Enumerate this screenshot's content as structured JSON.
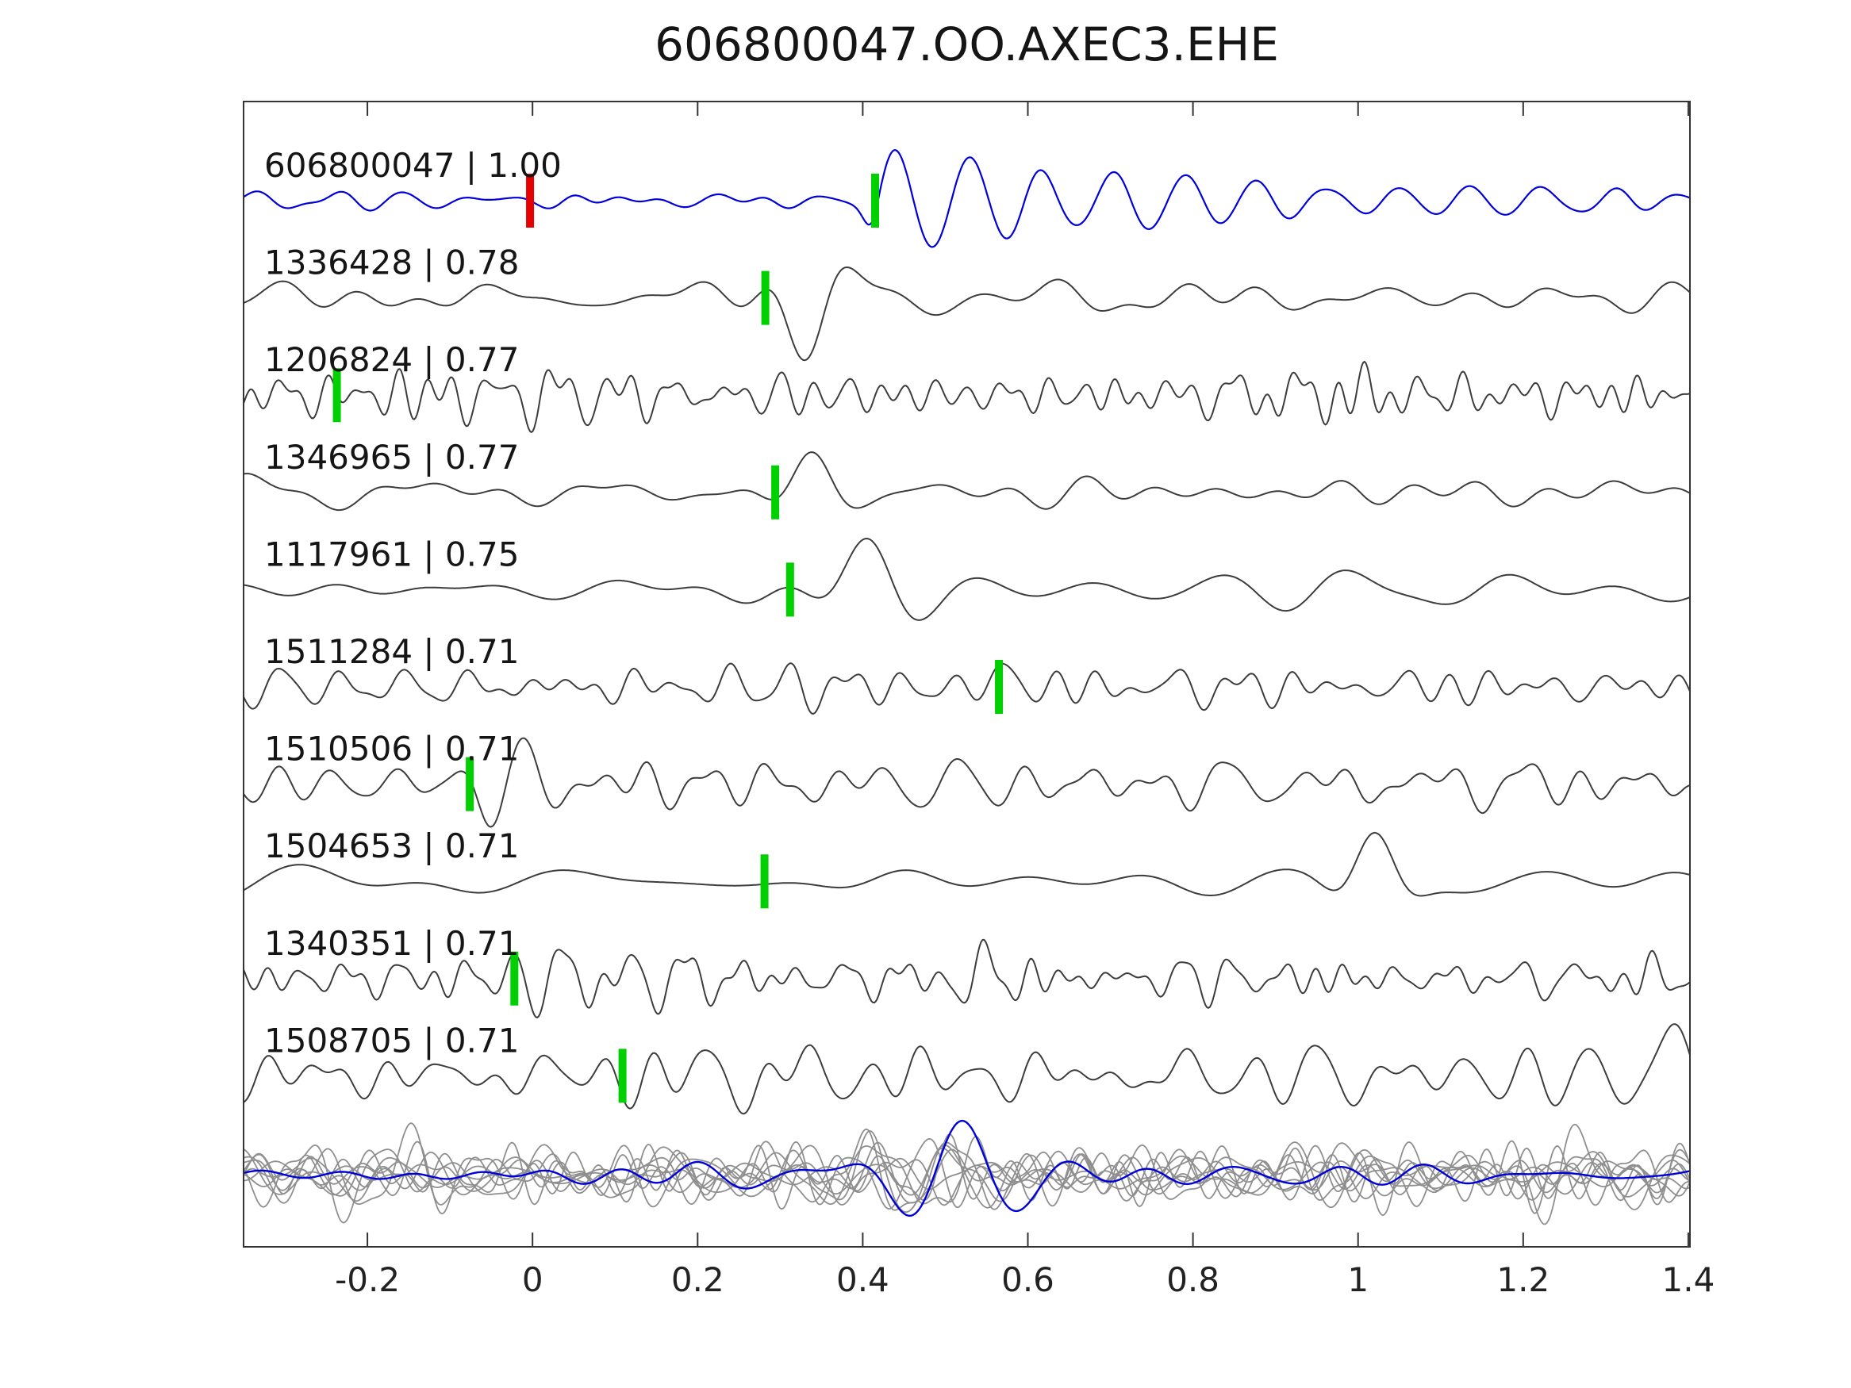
{
  "chart_data": {
    "type": "line",
    "title": "606800047.OO.AXEC3.EHE",
    "xlabel": "",
    "ylabel": "",
    "x_range": [
      -0.35,
      1.402
    ],
    "x_ticks": [
      -0.2,
      0,
      0.2,
      0.4,
      0.6,
      0.8,
      1,
      1.2,
      1.4
    ],
    "x_tick_labels": [
      "-0.2",
      "0",
      "0.2",
      "0.4",
      "0.6",
      "0.8",
      "1",
      "1.2",
      "1.4"
    ],
    "grid": false,
    "legend": "none",
    "colors": {
      "template_trace": "#0000dd",
      "match_trace": "#3c3c3c",
      "pick_green": "#00cf00",
      "pick_red": "#e60000",
      "overlay_gray": "#8f8f8f",
      "axis": "#333333",
      "text": "#151515"
    },
    "traces": [
      {
        "id": "606800047",
        "cc": "1.00",
        "label": "606800047 | 1.00",
        "role": "template",
        "seed": 11,
        "noise": {
          "amp": 5,
          "fmin": 6,
          "fmax": 22
        },
        "events": [
          {
            "t0": 0.42,
            "amp": 64,
            "freq": 11.5,
            "rise": 0.018,
            "decay": 0.45,
            "phase": 0
          }
        ],
        "picks": [
          {
            "t": -0.003,
            "color": "#e60000"
          },
          {
            "t": 0.415,
            "color": "#00cf00"
          }
        ]
      },
      {
        "id": "1336428",
        "cc": "0.78",
        "label": "1336428 | 0.78",
        "role": "match",
        "seed": 22,
        "noise": {
          "amp": 10,
          "fmin": 4,
          "fmax": 16
        },
        "events": [
          {
            "t0": 0.33,
            "amp": -62,
            "freq": 8,
            "sigma": 0.05,
            "phase": 1.5708
          }
        ],
        "picks": [
          {
            "t": 0.282,
            "color": "#00cf00"
          }
        ]
      },
      {
        "id": "1206824",
        "cc": "0.77",
        "label": "1206824 | 0.77",
        "role": "match",
        "seed": 33,
        "noise": {
          "amp": 15,
          "fmin": 11,
          "fmax": 38
        },
        "events": [],
        "picks": [
          {
            "t": -0.237,
            "color": "#00cf00"
          }
        ]
      },
      {
        "id": "1346965",
        "cc": "0.77",
        "label": "1346965 | 0.77",
        "role": "match",
        "seed": 44,
        "noise": {
          "amp": 10,
          "fmin": 3.5,
          "fmax": 13
        },
        "events": [
          {
            "t0": 0.335,
            "amp": 60,
            "freq": 7.5,
            "sigma": 0.055,
            "phase": 1.5708
          }
        ],
        "picks": [
          {
            "t": 0.294,
            "color": "#00cf00"
          }
        ]
      },
      {
        "id": "1117961",
        "cc": "0.75",
        "label": "1117961 | 0.75",
        "role": "match",
        "seed": 55,
        "noise": {
          "amp": 9,
          "fmin": 3.5,
          "fmax": 13
        },
        "events": [
          {
            "t0": 0.405,
            "amp": 62,
            "freq": 6.5,
            "sigma": 0.07,
            "phase": 1.5708
          }
        ],
        "picks": [
          {
            "t": 0.312,
            "color": "#00cf00"
          }
        ]
      },
      {
        "id": "1511284",
        "cc": "0.71",
        "label": "1511284 | 0.71",
        "role": "match",
        "seed": 66,
        "noise": {
          "amp": 12,
          "fmin": 7,
          "fmax": 26
        },
        "events": [
          {
            "t0": 0.575,
            "amp": 48,
            "freq": 13,
            "sigma": 0.035,
            "phase": 1.5708
          }
        ],
        "picks": [
          {
            "t": 0.565,
            "color": "#00cf00"
          }
        ]
      },
      {
        "id": "1510506",
        "cc": "0.71",
        "label": "1510506 | 0.71",
        "role": "match",
        "seed": 77,
        "noise": {
          "amp": 13,
          "fmin": 7,
          "fmax": 26
        },
        "events": [
          {
            "t0": -0.03,
            "amp": 42,
            "freq": 11,
            "sigma": 0.055,
            "phase": 0
          },
          {
            "t0": 0.82,
            "amp": 30,
            "freq": 10,
            "sigma": 0.08,
            "phase": 0
          }
        ],
        "picks": [
          {
            "t": -0.076,
            "color": "#00cf00"
          }
        ]
      },
      {
        "id": "1504653",
        "cc": "0.71",
        "label": "1504653 | 0.71",
        "role": "match",
        "seed": 88,
        "noise": {
          "amp": 8,
          "fmin": 2.2,
          "fmax": 8
        },
        "events": [
          {
            "t0": 1.02,
            "amp": 58,
            "freq": 7.5,
            "sigma": 0.05,
            "phase": 1.5708
          },
          {
            "t0": 0.42,
            "amp": 16,
            "freq": 5,
            "sigma": 0.1,
            "phase": 0
          }
        ],
        "picks": [
          {
            "t": 0.281,
            "color": "#00cf00"
          }
        ]
      },
      {
        "id": "1340351",
        "cc": "0.71",
        "label": "1340351 | 0.71",
        "role": "match",
        "seed": 99,
        "noise": {
          "amp": 14,
          "fmin": 11,
          "fmax": 36
        },
        "events": [
          {
            "t0": 0.02,
            "amp": 34,
            "freq": 16,
            "sigma": 0.05,
            "phase": 0
          },
          {
            "t0": 0.55,
            "amp": 38,
            "freq": 15,
            "sigma": 0.04,
            "phase": 1.0
          }
        ],
        "picks": [
          {
            "t": -0.022,
            "color": "#00cf00"
          }
        ]
      },
      {
        "id": "1508705",
        "cc": "0.71",
        "label": "1508705 | 0.71",
        "role": "match",
        "seed": 111,
        "noise": {
          "amp": 16,
          "fmin": 6,
          "fmax": 22
        },
        "events": [
          {
            "t0": 1.36,
            "amp": 46,
            "freq": 7,
            "sigma": 0.05,
            "phase": 1.2
          }
        ],
        "picks": [
          {
            "t": 0.109,
            "color": "#00cf00"
          }
        ]
      }
    ],
    "overlay": {
      "gray": {
        "count": 9,
        "seed": 500,
        "color": "#8f8f8f",
        "noise": {
          "amp": 14,
          "fmin": 6,
          "fmax": 24
        },
        "event": {
          "t0": 0.47,
          "amp": 26,
          "freq": 9,
          "sigma": 0.12,
          "phase": 0
        }
      },
      "blue": {
        "seed": 7,
        "noise": {
          "amp": 6,
          "fmin": 4,
          "fmax": 13
        },
        "event": {
          "t0": 0.52,
          "amp": 58,
          "freq": 7,
          "sigma": 0.11,
          "phase": 1.5708
        }
      }
    }
  }
}
